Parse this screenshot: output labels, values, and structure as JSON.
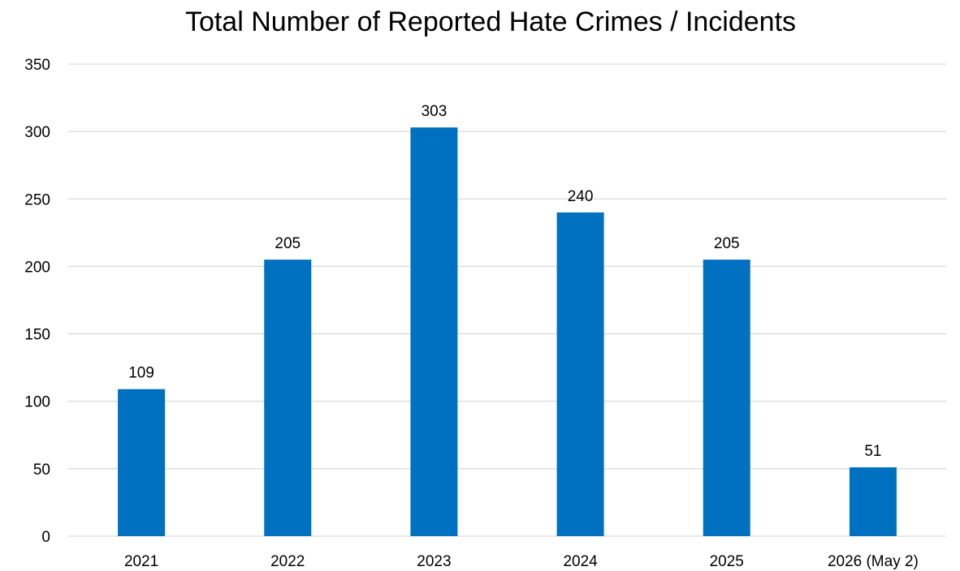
{
  "chart_data": {
    "type": "bar",
    "title": "Total Number of Reported Hate Crimes / Incidents",
    "xlabel": "",
    "ylabel": "",
    "categories": [
      "2021",
      "2022",
      "2023",
      "2024",
      "2025",
      "2026 (May 2)"
    ],
    "values": [
      109,
      205,
      303,
      240,
      205,
      51
    ],
    "data_labels": [
      "109",
      "205",
      "303",
      "240",
      "205",
      "51"
    ],
    "ylim": [
      0,
      350
    ],
    "yticks": [
      0,
      50,
      100,
      150,
      200,
      250,
      300,
      350
    ],
    "grid": true,
    "legend": "none",
    "bar_color": "#0070C0",
    "grid_color": "#D9D9D9"
  }
}
